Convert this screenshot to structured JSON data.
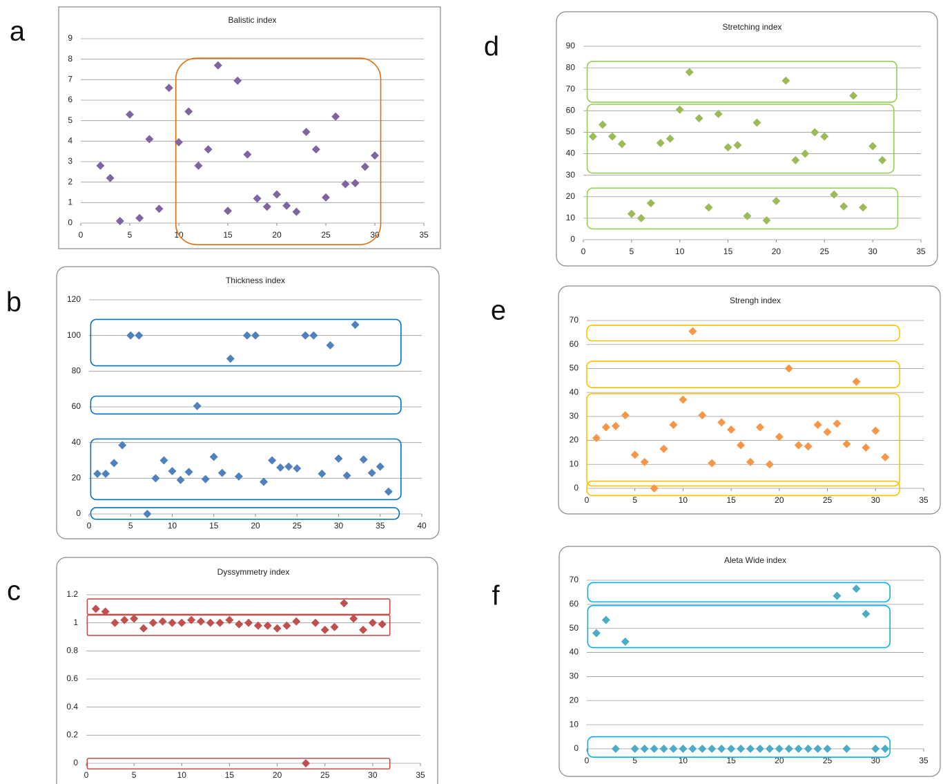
{
  "chart_data": [
    {
      "panel": "a",
      "type": "scatter",
      "title": "Balistic index",
      "color": "#8064a2",
      "box_color": "#e46c0a",
      "grid": true,
      "xlim": [
        0,
        35
      ],
      "xticks": [
        0,
        5,
        10,
        15,
        20,
        25,
        30,
        35
      ],
      "ylim": [
        0,
        9
      ],
      "yticks": [
        0,
        1,
        2,
        3,
        4,
        5,
        6,
        7,
        8,
        9
      ],
      "x": [
        2,
        3,
        4,
        5,
        6,
        7,
        8,
        9,
        10,
        11,
        12,
        13,
        14,
        15,
        16,
        17,
        18,
        19,
        20,
        21,
        22,
        23,
        24,
        25,
        26,
        27,
        28,
        29,
        30
      ],
      "values": [
        2.8,
        2.2,
        0.1,
        5.3,
        0.25,
        4.1,
        0.7,
        6.6,
        3.95,
        5.45,
        2.8,
        3.6,
        7.7,
        0.6,
        6.95,
        3.35,
        1.2,
        0.8,
        1.4,
        0.85,
        0.55,
        4.45,
        3.6,
        1.25,
        5.2,
        1.9,
        1.95,
        2.75,
        3.3
      ]
    },
    {
      "panel": "b",
      "type": "scatter",
      "title": "Thickness index",
      "color": "#4f81bd",
      "box_color": "#0070c0",
      "grid": true,
      "xlim": [
        0,
        40
      ],
      "xticks": [
        0,
        5,
        10,
        15,
        20,
        25,
        30,
        35,
        40
      ],
      "ylim": [
        0,
        120
      ],
      "yticks": [
        0,
        20,
        40,
        60,
        80,
        100,
        120
      ],
      "x": [
        1,
        2,
        3,
        4,
        5,
        6,
        7,
        8,
        9,
        10,
        11,
        12,
        13,
        14,
        15,
        16,
        17,
        18,
        19,
        20,
        21,
        22,
        23,
        24,
        25,
        26,
        27,
        28,
        29,
        30,
        31,
        32,
        33,
        34,
        35,
        36
      ],
      "values": [
        22.5,
        22.5,
        28.5,
        38.5,
        100,
        100,
        0,
        20,
        30,
        24,
        19,
        23.5,
        60.5,
        19.5,
        32,
        23,
        87,
        21,
        100,
        100,
        18,
        30,
        26,
        26.5,
        25.5,
        100,
        100,
        22.5,
        94.5,
        31,
        21.5,
        106,
        30.5,
        23,
        26.5,
        12.5
      ]
    },
    {
      "panel": "c",
      "type": "scatter",
      "title": "Dyssymmetry index",
      "color": "#c0504d",
      "box_color": "#c0504d",
      "grid": true,
      "xlim": [
        0,
        35
      ],
      "xticks": [
        0,
        5,
        10,
        15,
        20,
        25,
        30,
        35
      ],
      "ylim": [
        0,
        1.2
      ],
      "yticks": [
        0,
        0.2,
        0.4,
        0.6,
        0.8,
        1,
        1.2
      ],
      "x": [
        1,
        2,
        3,
        4,
        5,
        6,
        7,
        8,
        9,
        10,
        11,
        12,
        13,
        14,
        15,
        16,
        17,
        18,
        19,
        20,
        21,
        22,
        23,
        24,
        25,
        26,
        27,
        28,
        29,
        30,
        31
      ],
      "values": [
        1.1,
        1.08,
        1.0,
        1.02,
        1.03,
        0.96,
        1.0,
        1.01,
        1.0,
        1.0,
        1.02,
        1.01,
        1.0,
        1.0,
        1.02,
        0.99,
        1.0,
        0.98,
        0.98,
        0.96,
        0.98,
        1.01,
        0,
        1.0,
        0.95,
        0.97,
        1.14,
        1.03,
        0.95,
        1.0,
        0.99
      ]
    },
    {
      "panel": "d",
      "type": "scatter",
      "title": "Stretching index",
      "color": "#9bbb59",
      "box_color": "#92d050",
      "grid": true,
      "xlim": [
        0,
        35
      ],
      "xticks": [
        0,
        5,
        10,
        15,
        20,
        25,
        30,
        35
      ],
      "ylim": [
        0,
        90
      ],
      "yticks": [
        0,
        10,
        20,
        30,
        40,
        50,
        60,
        70,
        80,
        90
      ],
      "x": [
        1,
        2,
        3,
        4,
        5,
        6,
        7,
        8,
        9,
        10,
        11,
        12,
        13,
        14,
        15,
        16,
        17,
        18,
        19,
        20,
        21,
        22,
        23,
        24,
        25,
        26,
        27,
        28,
        29,
        30,
        31
      ],
      "values": [
        48,
        53.5,
        48,
        44.5,
        12,
        10,
        17,
        45,
        47,
        60.5,
        78,
        56.5,
        15,
        58.5,
        43,
        44,
        11,
        54.5,
        9,
        18,
        74,
        37,
        40,
        50,
        48,
        21,
        15.5,
        67,
        15,
        43.5,
        37
      ]
    },
    {
      "panel": "e",
      "type": "scatter",
      "title": "Strengh index",
      "color": "#f79646",
      "box_color": "#ffc000",
      "grid": true,
      "xlim": [
        0,
        35
      ],
      "xticks": [
        0,
        5,
        10,
        15,
        20,
        25,
        30,
        35
      ],
      "ylim": [
        0,
        70
      ],
      "yticks": [
        0,
        10,
        20,
        30,
        40,
        50,
        60,
        70
      ],
      "x": [
        1,
        2,
        3,
        4,
        5,
        6,
        7,
        8,
        9,
        10,
        11,
        12,
        13,
        14,
        15,
        16,
        17,
        18,
        19,
        20,
        21,
        22,
        23,
        24,
        25,
        26,
        27,
        28,
        29,
        30,
        31
      ],
      "values": [
        21,
        25.5,
        26,
        30.5,
        14,
        11,
        0,
        16.5,
        26.5,
        37,
        65.5,
        30.5,
        10.5,
        27.5,
        24.5,
        18,
        11,
        25.5,
        10,
        21.5,
        50,
        18,
        17.5,
        26.5,
        23.5,
        27,
        18.5,
        44.5,
        17,
        24,
        13
      ]
    },
    {
      "panel": "f",
      "type": "scatter",
      "title": "Aleta Wide index",
      "color": "#4bacc6",
      "box_color": "#00b0f0",
      "grid": true,
      "xlim": [
        0,
        35
      ],
      "xticks": [
        0,
        5,
        10,
        15,
        20,
        25,
        30,
        35
      ],
      "ylim": [
        0,
        70
      ],
      "yticks": [
        0,
        10,
        20,
        30,
        40,
        50,
        60,
        70
      ],
      "x": [
        1,
        2,
        3,
        4,
        5,
        6,
        7,
        8,
        9,
        10,
        11,
        12,
        13,
        14,
        15,
        16,
        17,
        18,
        19,
        20,
        21,
        22,
        23,
        24,
        25,
        26,
        27,
        28,
        29,
        30,
        31
      ],
      "values": [
        48,
        53.5,
        0,
        44.5,
        0,
        0,
        0,
        0,
        0,
        0,
        0,
        0,
        0,
        0,
        0,
        0,
        0,
        0,
        0,
        0,
        0,
        0,
        0,
        0,
        0,
        63.5,
        0,
        66.5,
        56,
        0,
        0
      ]
    }
  ]
}
